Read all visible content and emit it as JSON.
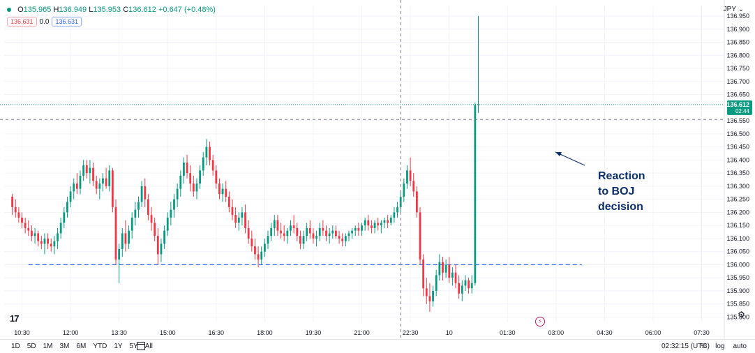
{
  "header": {
    "O_label": "O",
    "O": "135.965",
    "H_label": "H",
    "H": "136.949",
    "L_label": "L",
    "L": "135.953",
    "C_label": "C",
    "C": "136.612",
    "change": "+0.647 (+0.48%)",
    "sell_price": "136.631",
    "spread": "0.0",
    "buy_price": "136.631",
    "currency": "JPY"
  },
  "annotation": {
    "line1": "Reaction",
    "line2": "to BOJ",
    "line3": "decision"
  },
  "bottom_bar": {
    "ranges": [
      "1D",
      "5D",
      "1M",
      "3M",
      "6M",
      "YTD",
      "1Y",
      "5Y",
      "All"
    ],
    "time": "02:32:15 (UTC)",
    "percent": "%",
    "log": "log",
    "auto": "auto"
  },
  "colors": {
    "up": "#089981",
    "down": "#f23645",
    "support": "#2962ff",
    "annotation": "#0b2f6b"
  },
  "chart_data": {
    "type": "candlestick",
    "y_ticks": [
      "136.950",
      "136.900",
      "136.850",
      "136.800",
      "136.750",
      "136.700",
      "136.650",
      "136.600",
      "136.550",
      "136.500",
      "136.450",
      "136.400",
      "136.350",
      "136.300",
      "136.250",
      "136.200",
      "136.150",
      "136.100",
      "136.050",
      "136.000",
      "135.950",
      "135.900",
      "135.850",
      "135.800"
    ],
    "ylim": [
      135.78,
      136.99
    ],
    "x_ticks": [
      {
        "label": "10:30",
        "t": 0.3
      },
      {
        "label": "12:00",
        "t": 1.8
      },
      {
        "label": "13:30",
        "t": 3.3
      },
      {
        "label": "15:00",
        "t": 4.8
      },
      {
        "label": "16:30",
        "t": 6.3
      },
      {
        "label": "18:00",
        "t": 7.8
      },
      {
        "label": "19:30",
        "t": 9.3
      },
      {
        "label": "21:00",
        "t": 10.8
      },
      {
        "label": "22:30",
        "t": 12.3
      },
      {
        "label": "10",
        "t": 13.5
      },
      {
        "label": "01:30",
        "t": 15.3
      },
      {
        "label": "03:00",
        "t": 16.8
      },
      {
        "label": "04:30",
        "t": 18.3
      },
      {
        "label": "06:00",
        "t": 19.8
      },
      {
        "label": "07:30",
        "t": 21.3
      }
    ],
    "xlim": [
      -0.25,
      22.0
    ],
    "last_price": "136.612",
    "countdown": "02:44",
    "crosshair": {
      "t": 12.0,
      "price": "136.555"
    },
    "support_level": {
      "price": 136.0,
      "t_start": 0.5,
      "t_end": 17.6
    },
    "candles": [
      [
        0.0,
        136.26,
        136.27,
        136.19,
        136.22
      ],
      [
        0.1,
        136.22,
        136.25,
        136.18,
        136.2
      ],
      [
        0.2,
        136.2,
        136.22,
        136.16,
        136.18
      ],
      [
        0.3,
        136.18,
        136.2,
        136.14,
        136.16
      ],
      [
        0.4,
        136.16,
        136.18,
        136.12,
        136.14
      ],
      [
        0.5,
        136.14,
        136.17,
        136.11,
        136.13
      ],
      [
        0.6,
        136.13,
        136.15,
        136.09,
        136.11
      ],
      [
        0.7,
        136.11,
        136.14,
        136.08,
        136.12
      ],
      [
        0.8,
        136.12,
        136.13,
        136.07,
        136.09
      ],
      [
        0.9,
        136.09,
        136.11,
        136.06,
        136.08
      ],
      [
        1.0,
        136.08,
        136.12,
        136.04,
        136.1
      ],
      [
        1.1,
        136.1,
        136.12,
        136.06,
        136.08
      ],
      [
        1.2,
        136.08,
        136.1,
        136.05,
        136.07
      ],
      [
        1.3,
        136.07,
        136.11,
        136.04,
        136.09
      ],
      [
        1.4,
        136.09,
        136.14,
        136.06,
        136.12
      ],
      [
        1.5,
        136.12,
        136.18,
        136.1,
        136.16
      ],
      [
        1.6,
        136.16,
        136.22,
        136.14,
        136.2
      ],
      [
        1.7,
        136.2,
        136.26,
        136.18,
        136.24
      ],
      [
        1.8,
        136.24,
        136.3,
        136.22,
        136.28
      ],
      [
        1.9,
        136.28,
        136.33,
        136.25,
        136.31
      ],
      [
        2.0,
        136.31,
        136.35,
        136.27,
        136.29
      ],
      [
        2.1,
        136.29,
        136.36,
        136.27,
        136.34
      ],
      [
        2.2,
        136.34,
        136.4,
        136.32,
        136.38
      ],
      [
        2.3,
        136.38,
        136.4,
        136.33,
        136.35
      ],
      [
        2.4,
        136.35,
        136.4,
        136.31,
        136.37
      ],
      [
        2.5,
        136.37,
        136.39,
        136.3,
        136.32
      ],
      [
        2.6,
        136.32,
        136.34,
        136.27,
        136.29
      ],
      [
        2.7,
        136.29,
        136.33,
        136.25,
        136.31
      ],
      [
        2.8,
        136.31,
        136.35,
        136.28,
        136.33
      ],
      [
        2.9,
        136.33,
        136.37,
        136.29,
        136.3
      ],
      [
        3.0,
        136.3,
        136.38,
        136.28,
        136.36
      ],
      [
        3.1,
        136.36,
        136.37,
        136.2,
        136.22
      ],
      [
        3.2,
        136.22,
        136.25,
        136.0,
        136.02
      ],
      [
        3.3,
        136.02,
        136.08,
        135.93,
        136.06
      ],
      [
        3.4,
        136.06,
        136.14,
        136.03,
        136.12
      ],
      [
        3.5,
        136.12,
        136.17,
        136.05,
        136.08
      ],
      [
        3.6,
        136.08,
        136.15,
        136.06,
        136.13
      ],
      [
        3.7,
        136.13,
        136.2,
        136.1,
        136.18
      ],
      [
        3.8,
        136.18,
        136.24,
        136.15,
        136.21
      ],
      [
        3.9,
        136.21,
        136.26,
        136.18,
        136.24
      ],
      [
        4.0,
        136.24,
        136.32,
        136.22,
        136.3
      ],
      [
        4.1,
        136.3,
        136.33,
        136.22,
        136.25
      ],
      [
        4.2,
        136.25,
        136.27,
        136.17,
        136.19
      ],
      [
        4.3,
        136.19,
        136.22,
        136.13,
        136.16
      ],
      [
        4.4,
        136.16,
        136.18,
        136.09,
        136.11
      ],
      [
        4.5,
        136.11,
        136.14,
        136.0,
        136.04
      ],
      [
        4.6,
        136.04,
        136.1,
        136.01,
        136.08
      ],
      [
        4.7,
        136.08,
        136.15,
        136.06,
        136.13
      ],
      [
        4.8,
        136.13,
        136.2,
        136.11,
        136.18
      ],
      [
        4.9,
        136.18,
        136.24,
        136.15,
        136.21
      ],
      [
        5.0,
        136.21,
        136.27,
        136.18,
        136.25
      ],
      [
        5.1,
        136.25,
        136.31,
        136.22,
        136.29
      ],
      [
        5.2,
        136.29,
        136.36,
        136.26,
        136.34
      ],
      [
        5.3,
        136.34,
        136.41,
        136.31,
        136.39
      ],
      [
        5.4,
        136.39,
        136.42,
        136.33,
        136.35
      ],
      [
        5.5,
        136.35,
        136.38,
        136.28,
        136.31
      ],
      [
        5.6,
        136.31,
        136.34,
        136.26,
        136.28
      ],
      [
        5.7,
        136.28,
        136.33,
        136.25,
        136.31
      ],
      [
        5.8,
        136.31,
        136.38,
        136.29,
        136.36
      ],
      [
        5.9,
        136.36,
        136.43,
        136.34,
        136.41
      ],
      [
        6.0,
        136.41,
        136.48,
        136.38,
        136.45
      ],
      [
        6.1,
        136.45,
        136.47,
        136.38,
        136.4
      ],
      [
        6.2,
        136.4,
        136.42,
        136.34,
        136.36
      ],
      [
        6.3,
        136.36,
        136.38,
        136.29,
        136.31
      ],
      [
        6.4,
        136.31,
        136.33,
        136.25,
        136.27
      ],
      [
        6.5,
        136.27,
        136.31,
        136.24,
        136.29
      ],
      [
        6.6,
        136.29,
        136.32,
        136.24,
        136.26
      ],
      [
        6.7,
        136.26,
        136.28,
        136.2,
        136.22
      ],
      [
        6.8,
        136.22,
        136.25,
        136.17,
        136.19
      ],
      [
        6.9,
        136.19,
        136.22,
        136.14,
        136.16
      ],
      [
        7.0,
        136.16,
        136.2,
        136.13,
        136.18
      ],
      [
        7.1,
        136.18,
        136.22,
        136.15,
        136.2
      ],
      [
        7.2,
        136.2,
        136.23,
        136.12,
        136.14
      ],
      [
        7.3,
        136.14,
        136.17,
        136.08,
        136.1
      ],
      [
        7.4,
        136.1,
        136.13,
        136.05,
        136.07
      ],
      [
        7.5,
        136.07,
        136.1,
        136.02,
        136.04
      ],
      [
        7.6,
        136.04,
        136.07,
        135.99,
        136.02
      ],
      [
        7.7,
        136.02,
        136.07,
        136.0,
        136.05
      ],
      [
        7.8,
        136.05,
        136.1,
        136.03,
        136.08
      ],
      [
        7.9,
        136.08,
        136.13,
        136.06,
        136.11
      ],
      [
        8.0,
        136.11,
        136.16,
        136.09,
        136.14
      ],
      [
        8.1,
        136.14,
        136.19,
        136.11,
        136.17
      ],
      [
        8.2,
        136.17,
        136.19,
        136.11,
        136.13
      ],
      [
        8.3,
        136.13,
        136.16,
        136.1,
        136.12
      ],
      [
        8.4,
        136.12,
        136.15,
        136.09,
        136.11
      ],
      [
        8.5,
        136.11,
        136.14,
        136.08,
        136.13
      ],
      [
        8.6,
        136.13,
        136.17,
        136.11,
        136.15
      ],
      [
        8.7,
        136.15,
        136.19,
        136.12,
        136.14
      ],
      [
        8.8,
        136.14,
        136.16,
        136.09,
        136.11
      ],
      [
        8.9,
        136.11,
        136.13,
        136.06,
        136.08
      ],
      [
        9.0,
        136.08,
        136.13,
        136.06,
        136.11
      ],
      [
        9.1,
        136.11,
        136.16,
        136.09,
        136.14
      ],
      [
        9.2,
        136.14,
        136.17,
        136.1,
        136.12
      ],
      [
        9.3,
        136.12,
        136.14,
        136.08,
        136.1
      ],
      [
        9.4,
        136.1,
        136.13,
        136.07,
        136.11
      ],
      [
        9.5,
        136.11,
        136.16,
        136.09,
        136.14
      ],
      [
        9.6,
        136.14,
        136.17,
        136.11,
        136.13
      ],
      [
        9.7,
        136.13,
        136.15,
        136.09,
        136.11
      ],
      [
        9.8,
        136.11,
        136.14,
        136.08,
        136.12
      ],
      [
        9.9,
        136.12,
        136.15,
        136.1,
        136.13
      ],
      [
        10.0,
        136.13,
        136.15,
        136.1,
        136.11
      ],
      [
        10.1,
        136.11,
        136.13,
        136.08,
        136.1
      ],
      [
        10.2,
        136.1,
        136.12,
        136.07,
        136.09
      ],
      [
        10.3,
        136.09,
        136.12,
        136.07,
        136.11
      ],
      [
        10.4,
        136.11,
        136.13,
        136.09,
        136.12
      ],
      [
        10.5,
        136.12,
        136.14,
        136.1,
        136.13
      ],
      [
        10.6,
        136.13,
        136.15,
        136.11,
        136.14
      ],
      [
        10.7,
        136.14,
        136.16,
        136.11,
        136.13
      ],
      [
        10.8,
        136.13,
        136.16,
        136.11,
        136.15
      ],
      [
        10.9,
        136.15,
        136.18,
        136.13,
        136.17
      ],
      [
        11.0,
        136.17,
        136.19,
        136.13,
        136.15
      ],
      [
        11.1,
        136.15,
        136.17,
        136.12,
        136.14
      ],
      [
        11.2,
        136.14,
        136.17,
        136.12,
        136.16
      ],
      [
        11.3,
        136.16,
        136.18,
        136.13,
        136.15
      ],
      [
        11.4,
        136.15,
        136.17,
        136.12,
        136.16
      ],
      [
        11.5,
        136.16,
        136.18,
        136.14,
        136.17
      ],
      [
        11.6,
        136.17,
        136.19,
        136.14,
        136.16
      ],
      [
        11.7,
        136.16,
        136.19,
        136.15,
        136.18
      ],
      [
        11.8,
        136.18,
        136.22,
        136.16,
        136.2
      ],
      [
        11.9,
        136.2,
        136.24,
        136.18,
        136.22
      ],
      [
        12.0,
        136.22,
        136.28,
        136.2,
        136.26
      ],
      [
        12.1,
        136.26,
        136.33,
        136.24,
        136.31
      ],
      [
        12.2,
        136.31,
        136.38,
        136.29,
        136.36
      ],
      [
        12.3,
        136.36,
        136.41,
        136.3,
        136.32
      ],
      [
        12.4,
        136.32,
        136.35,
        136.26,
        136.28
      ],
      [
        12.5,
        136.28,
        136.3,
        136.18,
        136.2
      ],
      [
        12.6,
        136.2,
        136.22,
        136.0,
        136.02
      ],
      [
        12.7,
        136.02,
        136.04,
        135.88,
        135.91
      ],
      [
        12.8,
        135.91,
        135.95,
        135.85,
        135.88
      ],
      [
        12.9,
        135.88,
        135.93,
        135.82,
        135.86
      ],
      [
        13.0,
        135.86,
        135.92,
        135.84,
        135.9
      ],
      [
        13.1,
        135.9,
        135.98,
        135.88,
        135.96
      ],
      [
        13.2,
        135.96,
        136.04,
        135.94,
        136.01
      ],
      [
        13.3,
        136.01,
        136.03,
        135.94,
        135.97
      ],
      [
        13.4,
        135.97,
        136.02,
        135.95,
        136.0
      ],
      [
        13.5,
        136.0,
        136.03,
        135.93,
        135.95
      ],
      [
        13.6,
        135.95,
        135.99,
        135.92,
        135.97
      ],
      [
        13.7,
        135.97,
        136.0,
        135.91,
        135.93
      ],
      [
        13.8,
        135.93,
        135.96,
        135.87,
        135.89
      ],
      [
        13.9,
        135.89,
        135.94,
        135.86,
        135.92
      ],
      [
        14.0,
        135.92,
        135.96,
        135.9,
        135.94
      ],
      [
        14.1,
        135.94,
        135.95,
        135.89,
        135.91
      ],
      [
        14.2,
        135.91,
        135.96,
        135.89,
        135.93
      ],
      [
        14.3,
        135.93,
        136.62,
        135.92,
        136.61
      ],
      [
        14.4,
        136.61,
        136.95,
        136.58,
        136.612
      ]
    ]
  }
}
